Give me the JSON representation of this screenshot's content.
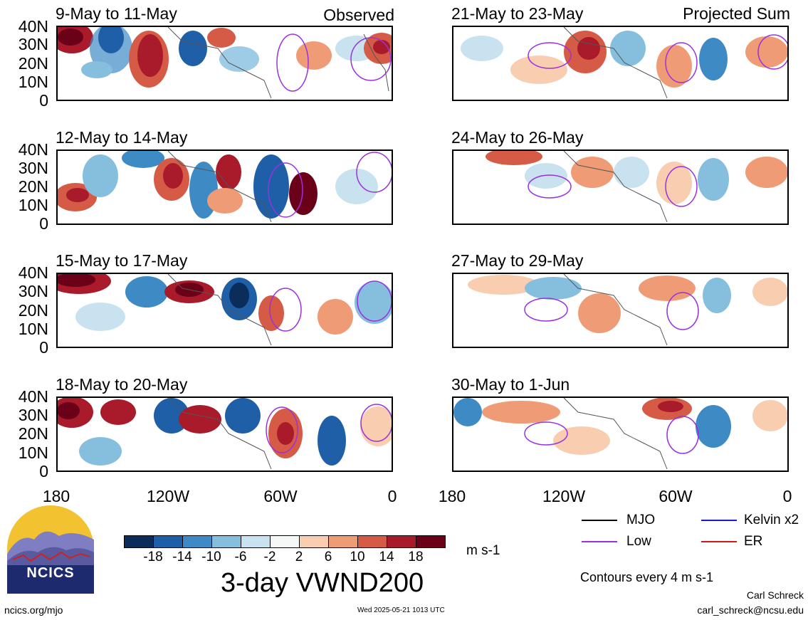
{
  "panels_left": [
    {
      "date": "9-May to 11-May",
      "corner": "Observed"
    },
    {
      "date": "12-May to 14-May",
      "corner": ""
    },
    {
      "date": "15-May to 17-May",
      "corner": ""
    },
    {
      "date": "18-May to 20-May",
      "corner": ""
    }
  ],
  "panels_right": [
    {
      "date": "21-May to 23-May",
      "corner": "Projected Sum"
    },
    {
      "date": "24-May to 26-May",
      "corner": ""
    },
    {
      "date": "27-May to 29-May",
      "corner": ""
    },
    {
      "date": "30-May to 1-Jun",
      "corner": ""
    }
  ],
  "lat_labels": [
    "40N",
    "30N",
    "20N",
    "10N",
    "0"
  ],
  "lon_labels": [
    "180",
    "120W",
    "60W",
    "0"
  ],
  "colorbar": {
    "labels": [
      "-18",
      "-14",
      "-10",
      "-6",
      "-2",
      "2",
      "6",
      "10",
      "14",
      "18"
    ],
    "colors": [
      "#0b2d5a",
      "#1f5fa8",
      "#3d8ac4",
      "#86bede",
      "#c9e2ef",
      "#f6f7f7",
      "#f8cdb0",
      "#ef9c76",
      "#d65b47",
      "#a91a2a",
      "#6b0019"
    ],
    "units": "m s-1"
  },
  "legend": {
    "items": [
      {
        "label": "MJO",
        "color": "#000000"
      },
      {
        "label": "Kelvin x2",
        "color": "#1a1acc"
      },
      {
        "label": "Low",
        "color": "#9b30e0"
      },
      {
        "label": "ER",
        "color": "#cc1a1a"
      }
    ],
    "contours_note": "Contours every 4 m s-1"
  },
  "main_title": "3-day VWND200",
  "logo_text": "NCICS",
  "footer": {
    "url": "ncics.org/mjo",
    "timestamp": "Wed 2025-05-21 1013 UTC",
    "author": "Carl Schreck",
    "email": "carl_schreck@ncsu.edu"
  }
}
